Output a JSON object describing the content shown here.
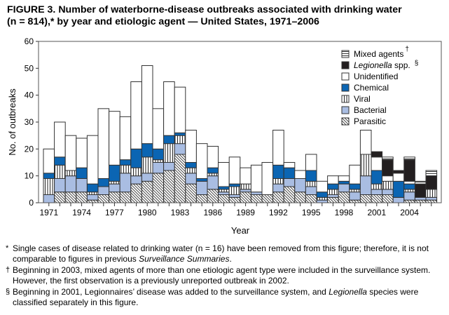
{
  "title": {
    "line1": "FIGURE 3.  Number of waterborne-disease outbreaks associated with drinking water",
    "line2": "(n = 814),* by year and etiologic agent — United States, 1971–2006"
  },
  "chart_data": {
    "type": "bar",
    "stacked": true,
    "xlabel": "Year",
    "ylabel": "No. of outbreaks",
    "ylim": [
      0,
      60
    ],
    "yticks": [
      0,
      10,
      20,
      30,
      40,
      50,
      60
    ],
    "xtick_labels": [
      "1971",
      "1974",
      "1977",
      "1980",
      "1983",
      "1986",
      "1989",
      "1992",
      "1995",
      "1998",
      "2001",
      "2004"
    ],
    "categories": [
      1971,
      1972,
      1973,
      1974,
      1975,
      1976,
      1977,
      1978,
      1979,
      1980,
      1981,
      1982,
      1983,
      1984,
      1985,
      1986,
      1987,
      1988,
      1989,
      1990,
      1991,
      1992,
      1993,
      1994,
      1995,
      1996,
      1997,
      1998,
      1999,
      2000,
      2001,
      2002,
      2003,
      2004,
      2005,
      2006
    ],
    "legend_position": "top-right",
    "grid": false,
    "series": [
      {
        "name": "Parasitic",
        "color": "#ffffff",
        "pattern": "diagonal",
        "values": [
          0,
          4,
          4,
          4,
          1,
          3,
          4,
          4,
          7,
          8,
          11,
          12,
          18,
          7,
          3,
          5,
          3,
          2,
          4,
          3,
          3,
          4,
          6,
          4,
          3,
          0,
          2,
          4,
          1,
          3,
          3,
          3,
          0,
          1,
          1,
          1
        ]
      },
      {
        "name": "Bacterial",
        "color": "#a9bde2",
        "pattern": "solid",
        "values": [
          3,
          5,
          6,
          5,
          2,
          3,
          3,
          7,
          3,
          3,
          4,
          3,
          4,
          4,
          5,
          5,
          1,
          1,
          1,
          1,
          0,
          3,
          3,
          5,
          3,
          1,
          1,
          3,
          3,
          7,
          2,
          2,
          2,
          3,
          1,
          1
        ]
      },
      {
        "name": "Viral",
        "color": "#ffffff",
        "pattern": "vertical",
        "values": [
          6,
          5,
          2,
          0,
          1,
          0,
          1,
          3,
          3,
          6,
          1,
          7,
          3,
          2,
          0,
          1,
          1,
          3,
          2,
          0,
          0,
          2,
          0,
          0,
          2,
          1,
          2,
          0,
          1,
          8,
          2,
          3,
          0,
          1,
          0,
          3
        ]
      },
      {
        "name": "Chemical",
        "color": "#0b65b3",
        "pattern": "solid",
        "values": [
          2,
          3,
          0,
          4,
          3,
          3,
          6,
          2,
          7,
          5,
          4,
          3,
          1,
          2,
          1,
          2,
          1,
          1,
          0,
          0,
          0,
          5,
          4,
          0,
          4,
          2,
          2,
          1,
          2,
          0,
          5,
          0,
          6,
          2,
          0,
          0
        ]
      },
      {
        "name": "Unidentified",
        "color": "#ffffff",
        "pattern": "solid",
        "values": [
          9,
          13,
          13,
          11,
          18,
          26,
          20,
          16,
          25,
          29,
          15,
          20,
          17,
          12,
          13,
          8,
          9,
          10,
          6,
          10,
          12,
          13,
          2,
          3,
          6,
          4,
          3,
          2,
          7,
          9,
          5,
          2,
          3,
          1,
          0,
          0
        ]
      },
      {
        "name": "Legionella spp.",
        "color": "#231f20",
        "pattern": "solid",
        "values": [
          0,
          0,
          0,
          0,
          0,
          0,
          0,
          0,
          0,
          0,
          0,
          0,
          0,
          0,
          0,
          0,
          0,
          0,
          0,
          0,
          0,
          0,
          0,
          0,
          0,
          0,
          0,
          0,
          0,
          0,
          2,
          6,
          1,
          8,
          5,
          5
        ]
      },
      {
        "name": "Mixed agents",
        "color": "#ffffff",
        "pattern": "horizontal",
        "values": [
          0,
          0,
          0,
          0,
          0,
          0,
          0,
          0,
          0,
          0,
          0,
          0,
          0,
          0,
          0,
          0,
          0,
          0,
          0,
          0,
          0,
          0,
          0,
          0,
          0,
          0,
          0,
          0,
          0,
          0,
          0,
          1,
          0,
          1,
          1,
          2
        ]
      }
    ],
    "legend_order": [
      "Mixed agents",
      "Legionella spp.",
      "Unidentified",
      "Chemical",
      "Viral",
      "Bacterial",
      "Parasitic"
    ],
    "legend_marks": {
      "Mixed agents": "†",
      "Legionella spp.": "§"
    }
  },
  "footnotes": [
    {
      "mark": "*",
      "parts": [
        {
          "text": "Single cases of disease related to drinking water (n = 16) have been removed from this figure; therefore, it is not comparable to figures in previous "
        },
        {
          "text": "Surveillance Summaries",
          "italic": true
        },
        {
          "text": "."
        }
      ]
    },
    {
      "mark": "†",
      "parts": [
        {
          "text": "Beginning in 2003, mixed agents of more than one etiologic agent type were included in the surveillance system. However, the first observation is a previously unreported outbreak in 2002."
        }
      ]
    },
    {
      "mark": "§",
      "parts": [
        {
          "text": "Beginning in 2001, Legionnaires’ disease was added to the surveillance system, and "
        },
        {
          "text": "Legionella",
          "italic": true
        },
        {
          "text": " species were classified separately in this figure."
        }
      ]
    }
  ]
}
